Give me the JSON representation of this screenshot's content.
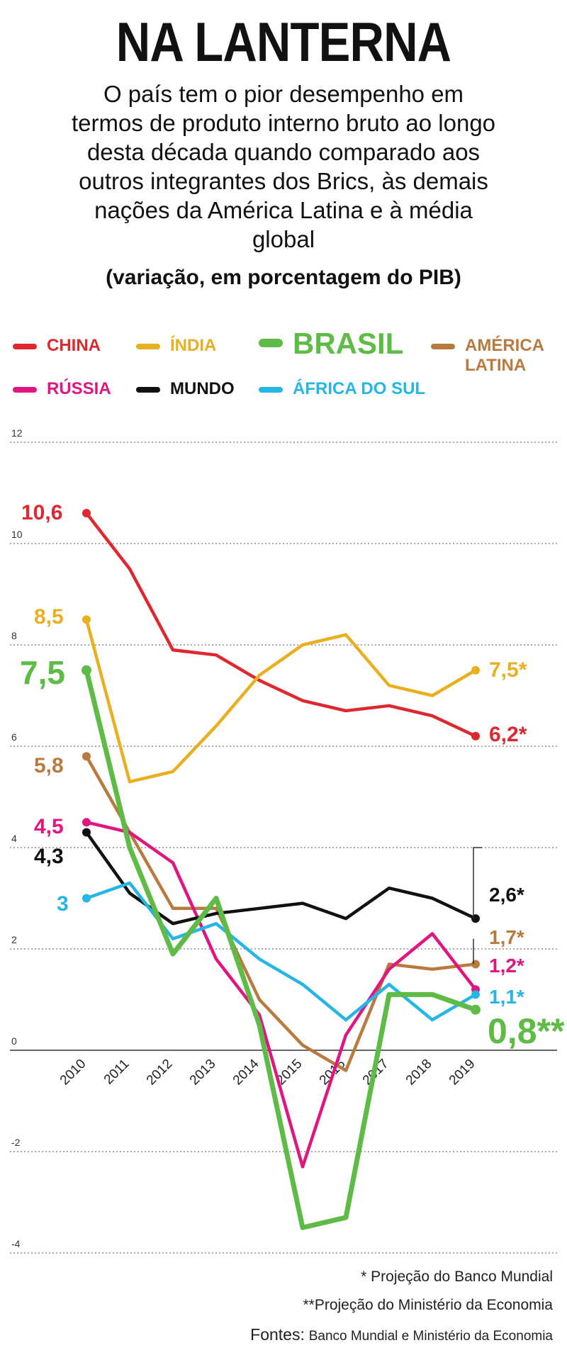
{
  "title": "NA LANTERNA",
  "subtitle": "O país tem o pior desempenho em termos de produto interno bruto ao longo desta década quando comparado aos outros integrantes dos Brics, às demais nações da América Latina e à média global",
  "unit_label": "(variação, em porcentagem do PIB)",
  "legend": [
    {
      "label": "CHINA",
      "color": "#e0262e"
    },
    {
      "label": "ÍNDIA",
      "color": "#e8b020"
    },
    {
      "label": "BRASIL",
      "color": "#5dbb46"
    },
    {
      "label": "AMÉRICA LATINA",
      "color": "#b97a3e"
    },
    {
      "label": "RÚSSIA",
      "color": "#e1157f"
    },
    {
      "label": "MUNDO",
      "color": "#111111"
    },
    {
      "label": "ÁFRICA DO SUL",
      "color": "#25b6e6"
    }
  ],
  "chart_data": {
    "type": "line",
    "title": "NA LANTERNA",
    "ylabel": "variação, em porcentagem do PIB",
    "ylim": [
      -4,
      12
    ],
    "yticks": [
      "12",
      "10",
      "8",
      "6",
      "4",
      "2",
      "0",
      "-2",
      "-4"
    ],
    "categories": [
      "2010",
      "2011",
      "2012",
      "2013",
      "2014",
      "2015",
      "2016",
      "2017",
      "2018",
      "2019"
    ],
    "series": [
      {
        "name": "CHINA",
        "color": "#e0262e",
        "values": [
          10.6,
          9.5,
          7.9,
          7.8,
          7.3,
          6.9,
          6.7,
          6.8,
          6.6,
          6.2
        ],
        "start_label": "10,6",
        "end_label": "6,2*"
      },
      {
        "name": "ÍNDIA",
        "color": "#e8b020",
        "values": [
          8.5,
          5.3,
          5.5,
          6.4,
          7.4,
          8.0,
          8.2,
          7.2,
          7.0,
          7.5
        ],
        "start_label": "8,5",
        "end_label": "7,5*"
      },
      {
        "name": "AMÉRICA LATINA",
        "color": "#b97a3e",
        "values": [
          5.8,
          4.3,
          2.8,
          2.8,
          1.0,
          0.1,
          -0.4,
          1.7,
          1.6,
          1.7
        ],
        "start_label": "5,8",
        "end_label": "1,7*"
      },
      {
        "name": "RÚSSIA",
        "color": "#e1157f",
        "values": [
          4.5,
          4.3,
          3.7,
          1.8,
          0.7,
          -2.3,
          0.3,
          1.6,
          2.3,
          1.2
        ],
        "start_label": "4,5",
        "end_label": "1,2*"
      },
      {
        "name": "MUNDO",
        "color": "#111111",
        "values": [
          4.3,
          3.1,
          2.5,
          2.7,
          2.8,
          2.9,
          2.6,
          3.2,
          3.0,
          2.6
        ],
        "start_label": "4,3",
        "end_label": "2,6*"
      },
      {
        "name": "ÁFRICA DO SUL",
        "color": "#25b6e6",
        "values": [
          3.0,
          3.3,
          2.2,
          2.5,
          1.8,
          1.3,
          0.6,
          1.3,
          0.6,
          1.1
        ],
        "start_label": "3",
        "end_label": "1,1*"
      },
      {
        "name": "BRASIL",
        "color": "#5dbb46",
        "values": [
          7.5,
          4.0,
          1.9,
          3.0,
          0.5,
          -3.5,
          -3.3,
          1.1,
          1.1,
          0.8
        ],
        "start_label": "7,5",
        "end_label": "0,8**"
      }
    ]
  },
  "footnotes": {
    "note1": "* Projeção do Banco Mundial",
    "note2": "**Projeção do Ministério da Economia",
    "sources_label": "Fontes:",
    "sources_text": "Banco Mundial e Ministério da Economia"
  }
}
